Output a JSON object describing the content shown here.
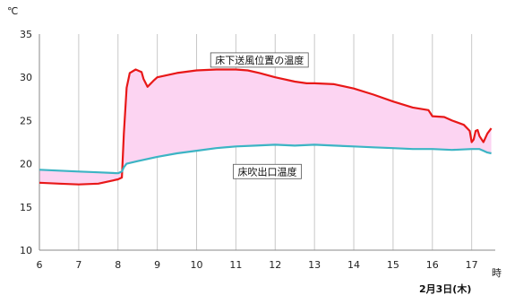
{
  "chart_data": {
    "type": "line",
    "xlabel": "時",
    "ylabel": "℃",
    "date_label": "2月3日(木)",
    "xlim": [
      6,
      17.6
    ],
    "ylim": [
      10,
      35
    ],
    "x_ticks": [
      6,
      7,
      8,
      9,
      10,
      11,
      12,
      13,
      14,
      15,
      16,
      17
    ],
    "y_ticks": [
      10,
      15,
      20,
      25,
      30,
      35
    ],
    "grid": "vertical",
    "fill_between_series": true,
    "colors": {
      "fill": "#fcd4f2",
      "grid": "#c8c8c8"
    },
    "series": [
      {
        "name": "床下送風位置の温度",
        "color": "#e81818",
        "x": [
          6.0,
          6.5,
          7.0,
          7.5,
          8.0,
          8.1,
          8.15,
          8.22,
          8.3,
          8.45,
          8.6,
          8.65,
          8.75,
          8.9,
          9.0,
          9.5,
          10.0,
          10.5,
          11.0,
          11.3,
          11.6,
          12.0,
          12.5,
          12.8,
          13.0,
          13.5,
          14.0,
          14.5,
          15.0,
          15.5,
          15.9,
          16.0,
          16.3,
          16.5,
          16.8,
          16.95,
          17.0,
          17.05,
          17.1,
          17.15,
          17.2,
          17.3,
          17.4,
          17.5
        ],
        "values": [
          17.8,
          17.7,
          17.6,
          17.7,
          18.2,
          18.4,
          23.5,
          28.8,
          30.5,
          30.9,
          30.6,
          29.8,
          28.9,
          29.6,
          30.0,
          30.5,
          30.8,
          30.9,
          30.9,
          30.8,
          30.5,
          30.0,
          29.5,
          29.3,
          29.3,
          29.2,
          28.7,
          28.0,
          27.2,
          26.5,
          26.2,
          25.5,
          25.4,
          25.0,
          24.5,
          23.8,
          22.5,
          22.8,
          23.8,
          23.9,
          23.2,
          22.5,
          23.5,
          24.1
        ]
      },
      {
        "name": "床吹出口温度",
        "color": "#3cb4c4",
        "x": [
          6.0,
          6.5,
          7.0,
          7.5,
          8.0,
          8.1,
          8.15,
          8.22,
          8.5,
          9.0,
          9.5,
          10.0,
          10.5,
          11.0,
          11.5,
          12.0,
          12.5,
          13.0,
          13.5,
          14.0,
          14.5,
          15.0,
          15.5,
          16.0,
          16.5,
          17.0,
          17.2,
          17.3,
          17.4,
          17.5
        ],
        "values": [
          19.3,
          19.2,
          19.1,
          19.0,
          18.9,
          19.1,
          19.6,
          20.0,
          20.3,
          20.8,
          21.2,
          21.5,
          21.8,
          22.0,
          22.1,
          22.2,
          22.1,
          22.2,
          22.1,
          22.0,
          21.9,
          21.8,
          21.7,
          21.7,
          21.6,
          21.7,
          21.7,
          21.5,
          21.3,
          21.2
        ]
      }
    ],
    "annotations": [
      {
        "text": "床下送風位置の温度",
        "x": 11.6,
        "y": 32.0
      },
      {
        "text": "床吹出口温度",
        "x": 11.8,
        "y": 19.1
      }
    ]
  }
}
